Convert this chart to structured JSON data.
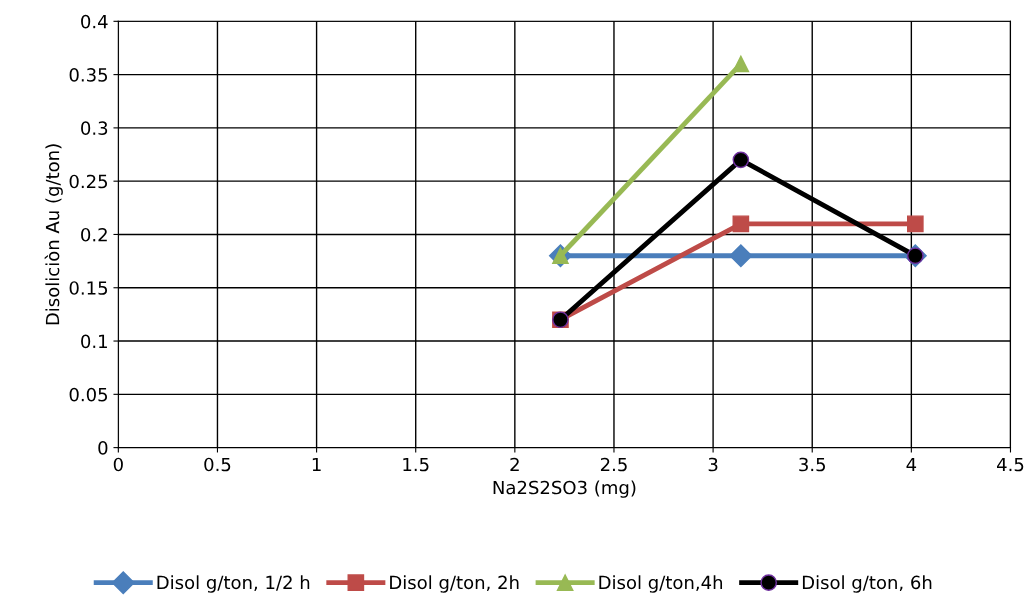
{
  "chart_data": {
    "type": "line",
    "xlabel": "Na2S2SO3 (mg)",
    "ylabel": "Disoliciòn Au (g/ton)",
    "xlim": [
      0,
      4.5
    ],
    "xticks": [
      0,
      0.5,
      1,
      1.5,
      2,
      2.5,
      3,
      3.5,
      4,
      4.5
    ],
    "ylim": [
      0,
      0.4
    ],
    "yticks": [
      0,
      0.05,
      0.1,
      0.15,
      0.2,
      0.25,
      0.3,
      0.35,
      0.4
    ],
    "grid": true,
    "legend": "bottom",
    "series": [
      {
        "name": "Disol g/ton, 1/2 h",
        "color": "#4a7ebb",
        "marker": "diamond",
        "x": [
          2.23,
          3.14,
          4.02
        ],
        "values": [
          0.18,
          0.18,
          0.18
        ]
      },
      {
        "name": "Disol g/ton, 2h",
        "color": "#be4b48",
        "marker": "square",
        "x": [
          2.23,
          3.14,
          4.02
        ],
        "values": [
          0.12,
          0.21,
          0.21
        ]
      },
      {
        "name": "Disol g/ton,4h",
        "color": "#98b954",
        "marker": "triangle",
        "x": [
          2.23,
          3.14
        ],
        "values": [
          0.18,
          0.36
        ]
      },
      {
        "name": "Disol g/ton, 6h",
        "color": "#000000",
        "marker": "circle",
        "x": [
          2.23,
          3.14,
          4.02
        ],
        "values": [
          0.12,
          0.27,
          0.18
        ]
      }
    ]
  }
}
